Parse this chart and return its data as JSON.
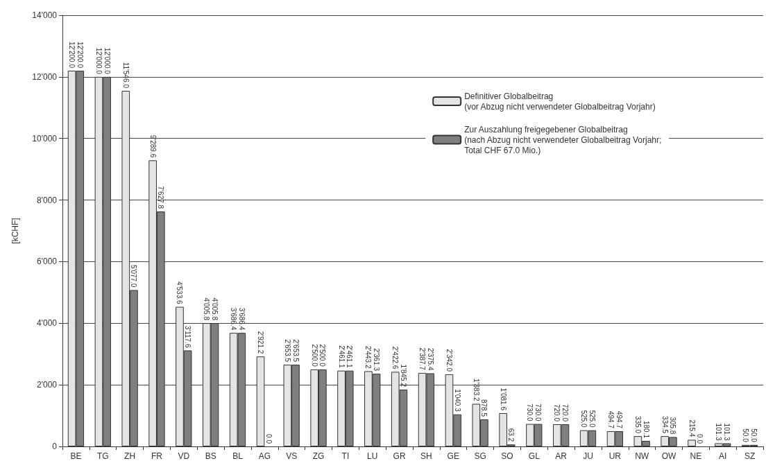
{
  "chart_data": {
    "type": "bar",
    "ylabel": "[kCHF]",
    "categories": [
      "BE",
      "TG",
      "ZH",
      "FR",
      "VD",
      "BS",
      "BL",
      "AG",
      "VS",
      "ZG",
      "TI",
      "LU",
      "GR",
      "SH",
      "GE",
      "SG",
      "SO",
      "GL",
      "AR",
      "JU",
      "UR",
      "NW",
      "OW",
      "NE",
      "AI",
      "SZ"
    ],
    "series": [
      {
        "name": "Definitiver Globalbeitrag\n(vor Abzug nicht verwendeter Globalbeitrag Vorjahr)",
        "color": "#e4e4e4",
        "values": [
          12200.0,
          12000.0,
          11546.0,
          9289.6,
          4533.6,
          4005.8,
          3686.4,
          2921.2,
          2653.5,
          2500.0,
          2461.1,
          2443.2,
          2422.6,
          2387.7,
          2342.0,
          1383.2,
          1081.6,
          730.0,
          720.0,
          525.0,
          494.7,
          335.0,
          334.5,
          215.4,
          101.3,
          50.0
        ],
        "value_labels": [
          "12'200.0",
          "12'000.0",
          "11'546.0",
          "9'289.6",
          "4'533.6",
          "4'005.8",
          "3'686.4",
          "2'921.2",
          "2'653.5",
          "2'500.0",
          "2'461.1",
          "2'443.2",
          "2'422.6",
          "2'387.7",
          "2'342.0",
          "1'383.2",
          "1'081.6",
          "730.0",
          "720.0",
          "525.0",
          "494.7",
          "335.0",
          "334.5",
          "215.4",
          "101.3",
          "50.0"
        ]
      },
      {
        "name": "Zur Auszahlung freigegebener Globalbeitrag\n(nach Abzug nicht verwendeter Globalbeitrag Vorjahr;\nTotal CHF 67.0 Mio.)",
        "color": "#7f7f7f",
        "values": [
          12200.0,
          12000.0,
          5077.0,
          7627.8,
          3117.6,
          4005.8,
          3686.4,
          0.0,
          2653.5,
          2500.0,
          2461.1,
          2361.3,
          1845.2,
          2375.4,
          1040.3,
          878.5,
          63.2,
          730.0,
          720.0,
          525.0,
          494.7,
          180.1,
          305.8,
          0.0,
          101.3,
          50.0
        ],
        "value_labels": [
          "12'200.0",
          "12'000.0",
          "5'077.0",
          "7'627.8",
          "3'117.6",
          "4'005.8",
          "3'686.4",
          "0.0",
          "2'653.5",
          "2'500.0",
          "2'461.1",
          "2'361.3",
          "1'845.2",
          "2'375.4",
          "1'040.3",
          "878.5",
          "63.2",
          "730.0",
          "720.0",
          "525.0",
          "494.7",
          "180.1",
          "305.8",
          "0.0",
          "101.3",
          "50.0"
        ]
      }
    ],
    "ylim": [
      0,
      14000
    ],
    "yticks": [
      {
        "value": 0,
        "label": "0"
      },
      {
        "value": 2000,
        "label": "2'000"
      },
      {
        "value": 4000,
        "label": "4'000"
      },
      {
        "value": 6000,
        "label": "6'000"
      },
      {
        "value": 8000,
        "label": "8'000"
      },
      {
        "value": 10000,
        "label": "10'000"
      },
      {
        "value": 12000,
        "label": "12'000"
      },
      {
        "value": 14000,
        "label": "14'000"
      }
    ],
    "grid": "y",
    "legend": "top right"
  }
}
